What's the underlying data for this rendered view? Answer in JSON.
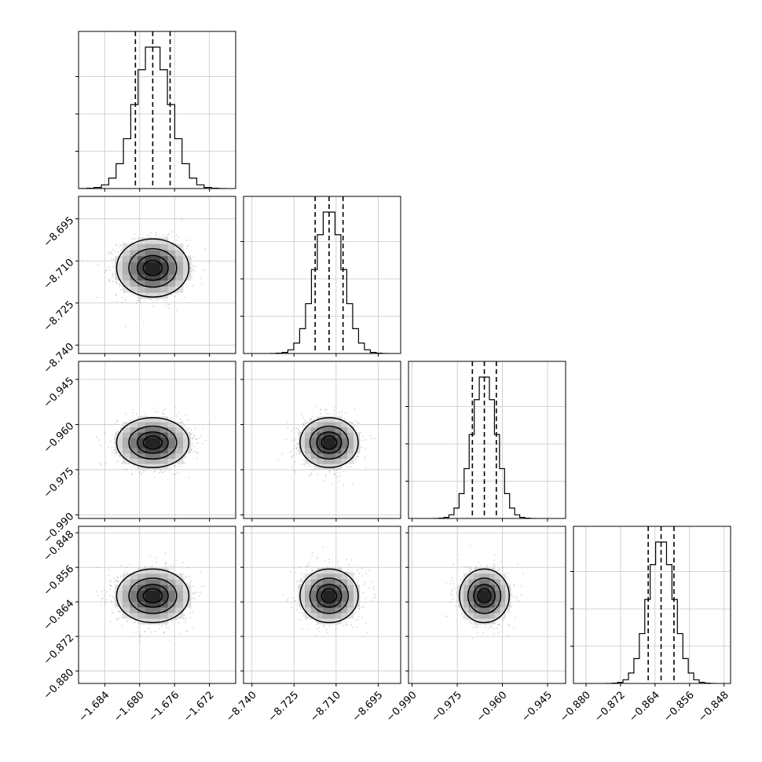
{
  "chart_data": {
    "type": "corner",
    "grid": true,
    "parameters": [
      {
        "mean": -1.6785,
        "std": 0.002,
        "range": [
          -1.687,
          -1.669
        ],
        "ticks": [
          -1.684,
          -1.68,
          -1.676,
          -1.672
        ]
      },
      {
        "mean": -8.7125,
        "std": 0.005,
        "range": [
          -8.743,
          -8.687
        ],
        "ticks": [
          -8.74,
          -8.725,
          -8.71,
          -8.695
        ]
      },
      {
        "mean": -0.966,
        "std": 0.004,
        "range": [
          -0.9912,
          -0.939
        ],
        "ticks": [
          -0.99,
          -0.975,
          -0.96,
          -0.945
        ]
      },
      {
        "mean": -0.8626,
        "std": 0.003,
        "range": [
          -0.8829,
          -0.8465
        ],
        "ticks": [
          -0.88,
          -0.872,
          -0.864,
          -0.856,
          -0.848
        ]
      }
    ],
    "quantiles_shown": [
      0.16,
      0.5,
      0.84
    ],
    "histogram_bins": 20,
    "contour_levels_sigma": [
      0.5,
      1.0,
      1.5,
      2.0
    ],
    "histogram_density_y_ticks": [
      0.25,
      0.5,
      0.75
    ]
  }
}
